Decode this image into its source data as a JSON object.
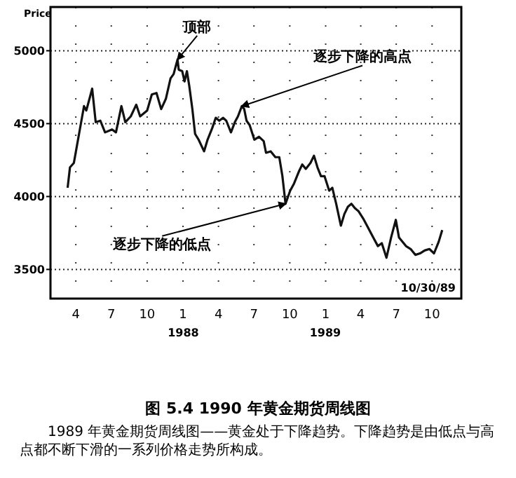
{
  "chart_data": {
    "type": "line",
    "title": "图 5.4  1990 年黄金期货周线图",
    "subtitle": "1989 年黄金期货周线图——黄金处于下降趋势。下降趋势是由低点与高点都不断下滑的一系列价格走势所构成。",
    "ylabel": "Price",
    "annotations": [
      {
        "text": "顶部",
        "x": "1987-12-18",
        "y": 4940
      },
      {
        "text": "逐步下降的高点",
        "x": "1988-05-31",
        "y": 4620
      },
      {
        "text": "逐步下降的低点",
        "x": "1988-09-20",
        "y": 3950
      },
      "10/30/89",
      "1988",
      "1989"
    ],
    "x": [
      "1987-03-11",
      "1987-03-17",
      "1987-03-27",
      "1987-04-22",
      "1987-04-28",
      "1987-05-13",
      "1987-05-22",
      "1987-06-03",
      "1987-06-15",
      "1987-07-03",
      "1987-07-13",
      "1987-07-27",
      "1987-08-06",
      "1987-08-20",
      "1987-09-03",
      "1987-09-13",
      "1987-10-01",
      "1987-10-13",
      "1987-10-25",
      "1987-11-06",
      "1987-11-18",
      "1987-11-30",
      "1987-12-08",
      "1987-12-18",
      "1987-12-21",
      "1987-12-30",
      "1988-01-05",
      "1988-01-11",
      "1988-01-17",
      "1988-01-25",
      "1988-02-01",
      "1988-02-10",
      "1988-02-24",
      "1988-03-04",
      "1988-03-16",
      "1988-03-25",
      "1988-04-03",
      "1988-04-13",
      "1988-04-21",
      "1988-05-03",
      "1988-05-13",
      "1988-05-21",
      "1988-05-31",
      "1988-06-06",
      "1988-06-12",
      "1988-06-20",
      "1988-07-02",
      "1988-07-14",
      "1988-07-26",
      "1988-08-01",
      "1988-08-13",
      "1988-08-25",
      "1988-09-04",
      "1988-09-12",
      "1988-09-20",
      "1988-10-02",
      "1988-10-12",
      "1988-10-24",
      "1988-11-02",
      "1988-11-11",
      "1988-11-23",
      "1988-12-02",
      "1988-12-11",
      "1988-12-20",
      "1988-12-29",
      "1989-01-10",
      "1989-01-18",
      "1989-01-28",
      "1989-02-09",
      "1989-02-18",
      "1989-02-27",
      "1989-03-08",
      "1989-03-17",
      "1989-03-26",
      "1989-04-07",
      "1989-04-19",
      "1989-05-03",
      "1989-05-15",
      "1989-05-25",
      "1989-06-06",
      "1989-06-18",
      "1989-06-30",
      "1989-07-08",
      "1989-07-26",
      "1989-08-07",
      "1989-08-19",
      "1989-08-31",
      "1989-09-12",
      "1989-09-24",
      "1989-10-06",
      "1989-10-18",
      "1989-10-27"
    ],
    "series": [
      {
        "color": "#111111",
        "values": [
          4060,
          4200,
          4230,
          4620,
          4590,
          4740,
          4510,
          4520,
          4440,
          4460,
          4440,
          4620,
          4510,
          4550,
          4630,
          4550,
          4590,
          4700,
          4710,
          4600,
          4670,
          4810,
          4840,
          4940,
          4870,
          4860,
          4790,
          4860,
          4760,
          4600,
          4430,
          4390,
          4310,
          4390,
          4470,
          4540,
          4520,
          4540,
          4520,
          4440,
          4510,
          4550,
          4620,
          4600,
          4520,
          4490,
          4390,
          4410,
          4380,
          4300,
          4310,
          4270,
          4270,
          4140,
          3950,
          4040,
          4090,
          4170,
          4220,
          4190,
          4230,
          4280,
          4200,
          4140,
          4140,
          4040,
          4060,
          3950,
          3800,
          3880,
          3930,
          3950,
          3920,
          3900,
          3850,
          3790,
          3720,
          3660,
          3680,
          3580,
          3720,
          3840,
          3720,
          3660,
          3640,
          3600,
          3610,
          3630,
          3640,
          3610,
          3690,
          3770
        ]
      }
    ],
    "xlim": [
      "1987-01-26",
      "1989-12-15"
    ],
    "xticks": [
      {
        "value": "1987-04-01",
        "label": "4"
      },
      {
        "value": "1987-07-01",
        "label": "7"
      },
      {
        "value": "1987-10-01",
        "label": "10"
      },
      {
        "value": "1988-01-01",
        "label": "1"
      },
      {
        "value": "1988-04-01",
        "label": "4"
      },
      {
        "value": "1988-07-01",
        "label": "7"
      },
      {
        "value": "1988-10-01",
        "label": "10"
      },
      {
        "value": "1989-01-01",
        "label": "1"
      },
      {
        "value": "1989-04-01",
        "label": "4"
      },
      {
        "value": "1989-07-01",
        "label": "7"
      },
      {
        "value": "1989-10-01",
        "label": "10"
      }
    ],
    "ylim": [
      3300,
      5300
    ],
    "yticks": [
      3500,
      4000,
      4500,
      5000
    ],
    "grid": true,
    "line_style": "solid"
  }
}
